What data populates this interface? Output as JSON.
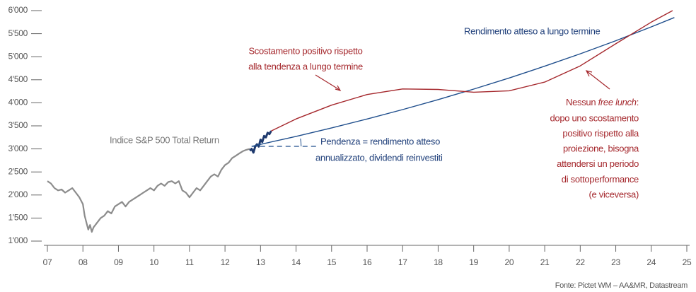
{
  "chart_data": {
    "type": "line",
    "xlim": [
      2007,
      2025
    ],
    "xticks": [
      {
        "value": 2007,
        "label": "07"
      },
      {
        "value": 2008,
        "label": "08"
      },
      {
        "value": 2009,
        "label": "09"
      },
      {
        "value": 2010,
        "label": "10"
      },
      {
        "value": 2011,
        "label": "11"
      },
      {
        "value": 2012,
        "label": "12"
      },
      {
        "value": 2013,
        "label": "13"
      },
      {
        "value": 2014,
        "label": "14"
      },
      {
        "value": 2015,
        "label": "15"
      },
      {
        "value": 2016,
        "label": "16"
      },
      {
        "value": 2017,
        "label": "17"
      },
      {
        "value": 2018,
        "label": "18"
      },
      {
        "value": 2019,
        "label": "19"
      },
      {
        "value": 2020,
        "label": "20"
      },
      {
        "value": 2021,
        "label": "21"
      },
      {
        "value": 2022,
        "label": "22"
      },
      {
        "value": 2023,
        "label": "23"
      },
      {
        "value": 2024,
        "label": "24"
      },
      {
        "value": 2025,
        "label": "25"
      }
    ],
    "ylim": [
      1000,
      6000
    ],
    "yticks": [
      {
        "value": 1000,
        "label": "1'000"
      },
      {
        "value": 1500,
        "label": "1'500"
      },
      {
        "value": 2000,
        "label": "2'000"
      },
      {
        "value": 2500,
        "label": "2'500"
      },
      {
        "value": 3000,
        "label": "3'000"
      },
      {
        "value": 3500,
        "label": "3'500"
      },
      {
        "value": 4000,
        "label": "4'000"
      },
      {
        "value": 4500,
        "label": "4'500"
      },
      {
        "value": 5000,
        "label": "5'000"
      },
      {
        "value": 5500,
        "label": "5'500"
      },
      {
        "value": 6000,
        "label": "6'000"
      }
    ],
    "series": [
      {
        "name": "Indice S&P 500 Total Return",
        "color": "#8c8c8c",
        "x": [
          2007.0,
          2007.1,
          2007.2,
          2007.3,
          2007.4,
          2007.5,
          2007.6,
          2007.7,
          2007.8,
          2007.9,
          2008.0,
          2008.05,
          2008.1,
          2008.15,
          2008.2,
          2008.25,
          2008.3,
          2008.4,
          2008.5,
          2008.6,
          2008.7,
          2008.8,
          2008.9,
          2009.0,
          2009.1,
          2009.2,
          2009.3,
          2009.4,
          2009.5,
          2009.6,
          2009.7,
          2009.8,
          2009.9,
          2010.0,
          2010.1,
          2010.2,
          2010.3,
          2010.4,
          2010.5,
          2010.6,
          2010.7,
          2010.8,
          2010.9,
          2011.0,
          2011.1,
          2011.2,
          2011.3,
          2011.4,
          2011.5,
          2011.6,
          2011.7,
          2011.8,
          2011.9,
          2012.0,
          2012.1,
          2012.2,
          2012.3,
          2012.4,
          2012.5,
          2012.6,
          2012.7
        ],
        "values": [
          2300,
          2250,
          2150,
          2100,
          2120,
          2050,
          2100,
          2150,
          2050,
          1950,
          1800,
          1550,
          1400,
          1250,
          1350,
          1200,
          1300,
          1400,
          1500,
          1550,
          1650,
          1600,
          1750,
          1800,
          1850,
          1750,
          1850,
          1900,
          1950,
          2000,
          2050,
          2100,
          2150,
          2100,
          2200,
          2250,
          2200,
          2280,
          2300,
          2250,
          2300,
          2100,
          2050,
          1950,
          2050,
          2150,
          2100,
          2200,
          2300,
          2400,
          2450,
          2400,
          2550,
          2650,
          2700,
          2800,
          2850,
          2900,
          2950,
          2980,
          3000
        ]
      },
      {
        "color": "#1f3a6e",
        "x": [
          2012.7,
          2012.75,
          2012.8,
          2012.85,
          2012.9,
          2012.95,
          2013.0,
          2013.05,
          2013.1,
          2013.15,
          2013.2,
          2013.25,
          2013.3
        ],
        "values": [
          2960,
          3000,
          2920,
          3050,
          3100,
          3050,
          3200,
          3150,
          3280,
          3250,
          3350,
          3320,
          3390
        ]
      },
      {
        "name": "Rendimento atteso a lungo termine",
        "color": "#1f4e8c",
        "x": [
          2012.75,
          2014,
          2015,
          2016,
          2017,
          2018,
          2019,
          2020,
          2021,
          2022,
          2023,
          2024,
          2024.65
        ],
        "values": [
          3055,
          3271,
          3455,
          3649,
          3853,
          4069,
          4297,
          4539,
          4794,
          5063,
          5347,
          5647,
          5850
        ]
      },
      {
        "color": "#a5282d",
        "x": [
          2013.3,
          2014,
          2015,
          2016,
          2017,
          2018,
          2019,
          2020,
          2021,
          2022,
          2023,
          2024,
          2024.6
        ],
        "values": [
          3390,
          3650,
          3950,
          4180,
          4300,
          4290,
          4230,
          4260,
          4450,
          4800,
          5280,
          5750,
          6000
        ]
      }
    ],
    "annotations": {
      "scostamento": [
        "Scostamento positivo rispetto",
        "alla tendenza a lungo termine"
      ],
      "pendenza": [
        "Pendenza = rendimento atteso",
        "annualizzato, dividendi reinvestiti"
      ],
      "nessun": {
        "lead": "Nessun ",
        "italic": "free lunch",
        "tail": ":",
        "lines": [
          "dopo uno scostamento",
          "positivo rispetto alla",
          "proiezione, bisogna",
          "attendersi un periodo",
          "di sottoperformance",
          "(e viceversa)"
        ]
      },
      "source": "Fonte: Pictet WM – AA&MR, Datastream"
    }
  }
}
